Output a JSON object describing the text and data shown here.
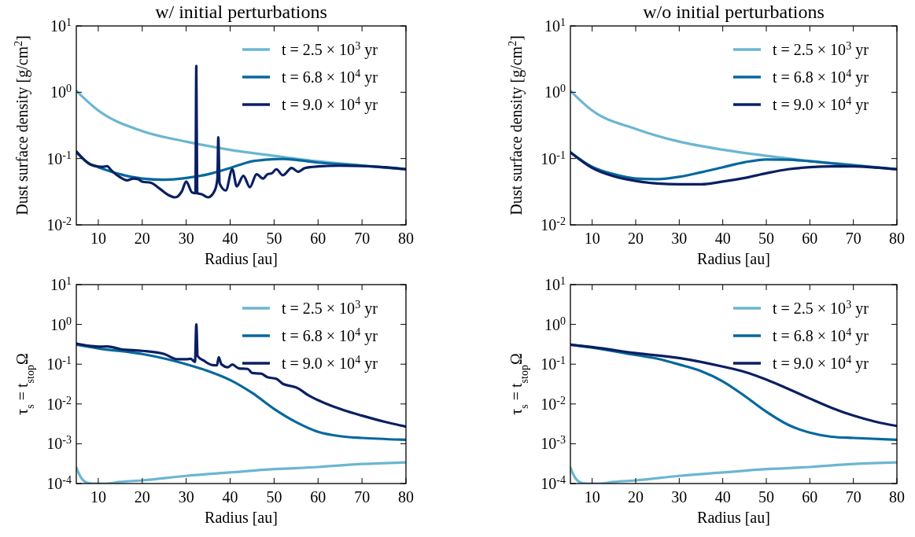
{
  "chart_data": [
    {
      "type": "line",
      "title": "w/ initial perturbations",
      "xlabel": "Radius [au]",
      "ylabel": "Dust surface density [g/cm$^{2}$]",
      "log": "y",
      "legend": "top right",
      "xlim": [
        5,
        80
      ],
      "xticks": [
        10,
        20,
        30,
        40,
        50,
        60,
        70,
        80
      ],
      "ylim": [
        0.01,
        10
      ],
      "yticks": [
        {
          "value": 0.01,
          "label": "10$^{-2}$"
        },
        {
          "value": 0.1,
          "label": "10$^{-1}$"
        },
        {
          "value": 1,
          "label": "10$^{0}$"
        },
        {
          "value": 10,
          "label": "10$^{1}$"
        }
      ],
      "series": [
        {
          "name": "t = 2.5 × 10$^{3}$ yr",
          "color": "#6bb6d2",
          "x": [
            5,
            10,
            20,
            30,
            40,
            50,
            60,
            70,
            80
          ],
          "values": [
            1.05,
            0.53,
            0.26,
            0.18,
            0.135,
            0.11,
            0.091,
            0.079,
            0.069
          ]
        },
        {
          "name": "t = 6.8 × 10$^{4}$ yr",
          "color": "#06689e",
          "x": [
            5,
            8,
            10,
            15,
            20,
            25,
            30,
            35,
            40,
            45,
            48,
            52,
            60,
            70,
            80
          ],
          "values": [
            0.124,
            0.083,
            0.074,
            0.058,
            0.05,
            0.048,
            0.051,
            0.058,
            0.072,
            0.091,
            0.096,
            0.099,
            0.087,
            0.078,
            0.069
          ]
        },
        {
          "name": "t = 9.0 × 10$^{4}$ yr",
          "color": "#0a1f62",
          "x": [
            5,
            8,
            10,
            11,
            12,
            13,
            15,
            16.5,
            18,
            19,
            20,
            22,
            24,
            26,
            27.5,
            29,
            30,
            31.3,
            32.1,
            32.3,
            32.5,
            33.5,
            35,
            36.5,
            37.1,
            37.3,
            37.6,
            39,
            40.5,
            41.5,
            43,
            44.5,
            46,
            47.5,
            48.5,
            49.5,
            50.5,
            52,
            54,
            55.5,
            57,
            60,
            65,
            70,
            75,
            80
          ],
          "values": [
            0.128,
            0.083,
            0.076,
            0.075,
            0.077,
            0.066,
            0.052,
            0.047,
            0.05,
            0.049,
            0.045,
            0.043,
            0.035,
            0.028,
            0.026,
            0.032,
            0.045,
            0.031,
            0.03,
            2.5,
            0.03,
            0.029,
            0.026,
            0.033,
            0.05,
            0.21,
            0.042,
            0.033,
            0.069,
            0.038,
            0.055,
            0.037,
            0.058,
            0.05,
            0.058,
            0.06,
            0.069,
            0.056,
            0.072,
            0.063,
            0.072,
            0.076,
            0.078,
            0.077,
            0.074,
            0.069
          ]
        }
      ]
    },
    {
      "type": "line",
      "title": "w/o initial perturbations",
      "xlabel": "Radius [au]",
      "ylabel": "Dust surface density [g/cm$^{2}$]",
      "log": "y",
      "legend": "top right",
      "xlim": [
        5,
        80
      ],
      "xticks": [
        10,
        20,
        30,
        40,
        50,
        60,
        70,
        80
      ],
      "ylim": [
        0.01,
        10
      ],
      "yticks": [
        {
          "value": 0.01,
          "label": "10$^{-2}$"
        },
        {
          "value": 0.1,
          "label": "10$^{-1}$"
        },
        {
          "value": 1,
          "label": "10$^{0}$"
        },
        {
          "value": 10,
          "label": "10$^{1}$"
        }
      ],
      "series": [
        {
          "name": "t = 2.5 × 10$^{3}$ yr",
          "color": "#6bb6d2",
          "x": [
            5,
            10,
            20,
            30,
            40,
            50,
            60,
            70,
            80
          ],
          "values": [
            1.05,
            0.53,
            0.28,
            0.18,
            0.136,
            0.11,
            0.092,
            0.08,
            0.069
          ]
        },
        {
          "name": "t = 6.8 × 10$^{4}$ yr",
          "color": "#06689e",
          "x": [
            5,
            10,
            15,
            20,
            25,
            30,
            35,
            40,
            45,
            50,
            55,
            60,
            70,
            80
          ],
          "values": [
            0.124,
            0.075,
            0.058,
            0.05,
            0.049,
            0.053,
            0.062,
            0.074,
            0.088,
            0.097,
            0.096,
            0.091,
            0.079,
            0.069
          ]
        },
        {
          "name": "t = 9.0 × 10$^{4}$ yr",
          "color": "#0a1f62",
          "x": [
            5,
            10,
            15,
            20,
            25,
            30,
            35,
            40,
            45,
            50,
            55,
            60,
            65,
            70,
            75,
            80
          ],
          "values": [
            0.124,
            0.072,
            0.054,
            0.046,
            0.042,
            0.041,
            0.041,
            0.045,
            0.051,
            0.06,
            0.069,
            0.074,
            0.076,
            0.076,
            0.073,
            0.069
          ]
        }
      ]
    },
    {
      "type": "line",
      "xlabel": "Radius [au]",
      "ylabel": "τ$_{s}$ = t$_{stop}$Ω",
      "log": "y",
      "legend": "top right",
      "xlim": [
        5,
        80
      ],
      "xticks": [
        10,
        20,
        30,
        40,
        50,
        60,
        70,
        80
      ],
      "ylim": [
        0.0001,
        10
      ],
      "yticks": [
        {
          "value": 0.0001,
          "label": "10$^{-4}$"
        },
        {
          "value": 0.001,
          "label": "10$^{-3}$"
        },
        {
          "value": 0.01,
          "label": "10$^{-2}$"
        },
        {
          "value": 0.1,
          "label": "10$^{-1}$"
        },
        {
          "value": 1,
          "label": "10$^{0}$"
        },
        {
          "value": 10,
          "label": "10$^{1}$"
        }
      ],
      "series": [
        {
          "name": "t = 2.5 × 10$^{3}$ yr",
          "color": "#6bb6d2",
          "x": [
            5,
            6,
            7.5,
            9,
            12,
            15,
            20,
            30,
            40,
            50,
            60,
            70,
            80
          ],
          "values": [
            0.00025,
            0.000145,
            0.000105,
            0.0001,
            0.0001,
            0.00011,
            0.00012,
            0.000156,
            0.00019,
            0.00023,
            0.00026,
            0.00031,
            0.00034
          ]
        },
        {
          "name": "t = 6.8 × 10$^{4}$ yr",
          "color": "#06689e",
          "x": [
            5,
            10,
            20,
            30,
            35,
            40,
            45,
            50,
            55,
            60,
            65,
            70,
            80
          ],
          "values": [
            0.31,
            0.25,
            0.18,
            0.1,
            0.067,
            0.04,
            0.019,
            0.0075,
            0.0035,
            0.002,
            0.00155,
            0.0014,
            0.00126
          ]
        },
        {
          "name": "t = 9.0 × 10$^{4}$ yr",
          "color": "#0a1f62",
          "x": [
            5,
            8,
            10,
            12,
            15,
            20,
            25,
            28,
            30,
            31,
            32,
            32.3,
            32.6,
            34,
            36,
            37,
            37.4,
            38,
            39.5,
            40.5,
            42,
            44,
            45,
            47,
            48.5,
            50.5,
            52,
            54,
            55,
            58,
            62,
            66,
            70,
            75,
            80
          ],
          "values": [
            0.33,
            0.29,
            0.275,
            0.28,
            0.24,
            0.216,
            0.18,
            0.133,
            0.133,
            0.136,
            0.114,
            1,
            0.16,
            0.123,
            0.095,
            0.094,
            0.15,
            0.1,
            0.084,
            0.098,
            0.078,
            0.076,
            0.06,
            0.058,
            0.047,
            0.043,
            0.032,
            0.028,
            0.026,
            0.016,
            0.01,
            0.0069,
            0.0051,
            0.0036,
            0.0027
          ]
        }
      ]
    },
    {
      "type": "line",
      "xlabel": "Radius [au]",
      "ylabel": "τ$_{s}$ = t$_{stop}$Ω",
      "log": "y",
      "legend": "top right",
      "xlim": [
        5,
        80
      ],
      "xticks": [
        10,
        20,
        30,
        40,
        50,
        60,
        70,
        80
      ],
      "ylim": [
        0.0001,
        10
      ],
      "yticks": [
        {
          "value": 0.0001,
          "label": "10$^{-4}$"
        },
        {
          "value": 0.001,
          "label": "10$^{-3}$"
        },
        {
          "value": 0.01,
          "label": "10$^{-2}$"
        },
        {
          "value": 0.1,
          "label": "10$^{-1}$"
        },
        {
          "value": 1,
          "label": "10$^{0}$"
        },
        {
          "value": 10,
          "label": "10$^{1}$"
        }
      ],
      "series": [
        {
          "name": "t = 2.5 × 10$^{3}$ yr",
          "color": "#6bb6d2",
          "x": [
            5,
            6,
            7.5,
            9,
            12,
            15,
            20,
            30,
            40,
            50,
            60,
            70,
            80
          ],
          "values": [
            0.00025,
            0.000145,
            0.000105,
            0.0001,
            0.0001,
            0.00011,
            0.00012,
            0.000156,
            0.00019,
            0.00023,
            0.00026,
            0.00031,
            0.00034
          ]
        },
        {
          "name": "t = 6.8 × 10$^{4}$ yr",
          "color": "#06689e",
          "x": [
            5,
            10,
            20,
            25,
            30,
            35,
            40,
            45,
            50,
            55,
            60,
            65,
            70,
            80
          ],
          "values": [
            0.31,
            0.26,
            0.17,
            0.137,
            0.098,
            0.067,
            0.037,
            0.016,
            0.0064,
            0.003,
            0.0019,
            0.0015,
            0.0014,
            0.00126
          ]
        },
        {
          "name": "t = 9.0 × 10$^{4}$ yr",
          "color": "#0a1f62",
          "x": [
            5,
            10,
            20,
            30,
            40,
            45,
            50,
            55,
            60,
            65,
            70,
            75,
            80
          ],
          "values": [
            0.31,
            0.27,
            0.19,
            0.143,
            0.087,
            0.064,
            0.041,
            0.024,
            0.0137,
            0.008,
            0.0051,
            0.0036,
            0.0028
          ]
        }
      ]
    }
  ]
}
